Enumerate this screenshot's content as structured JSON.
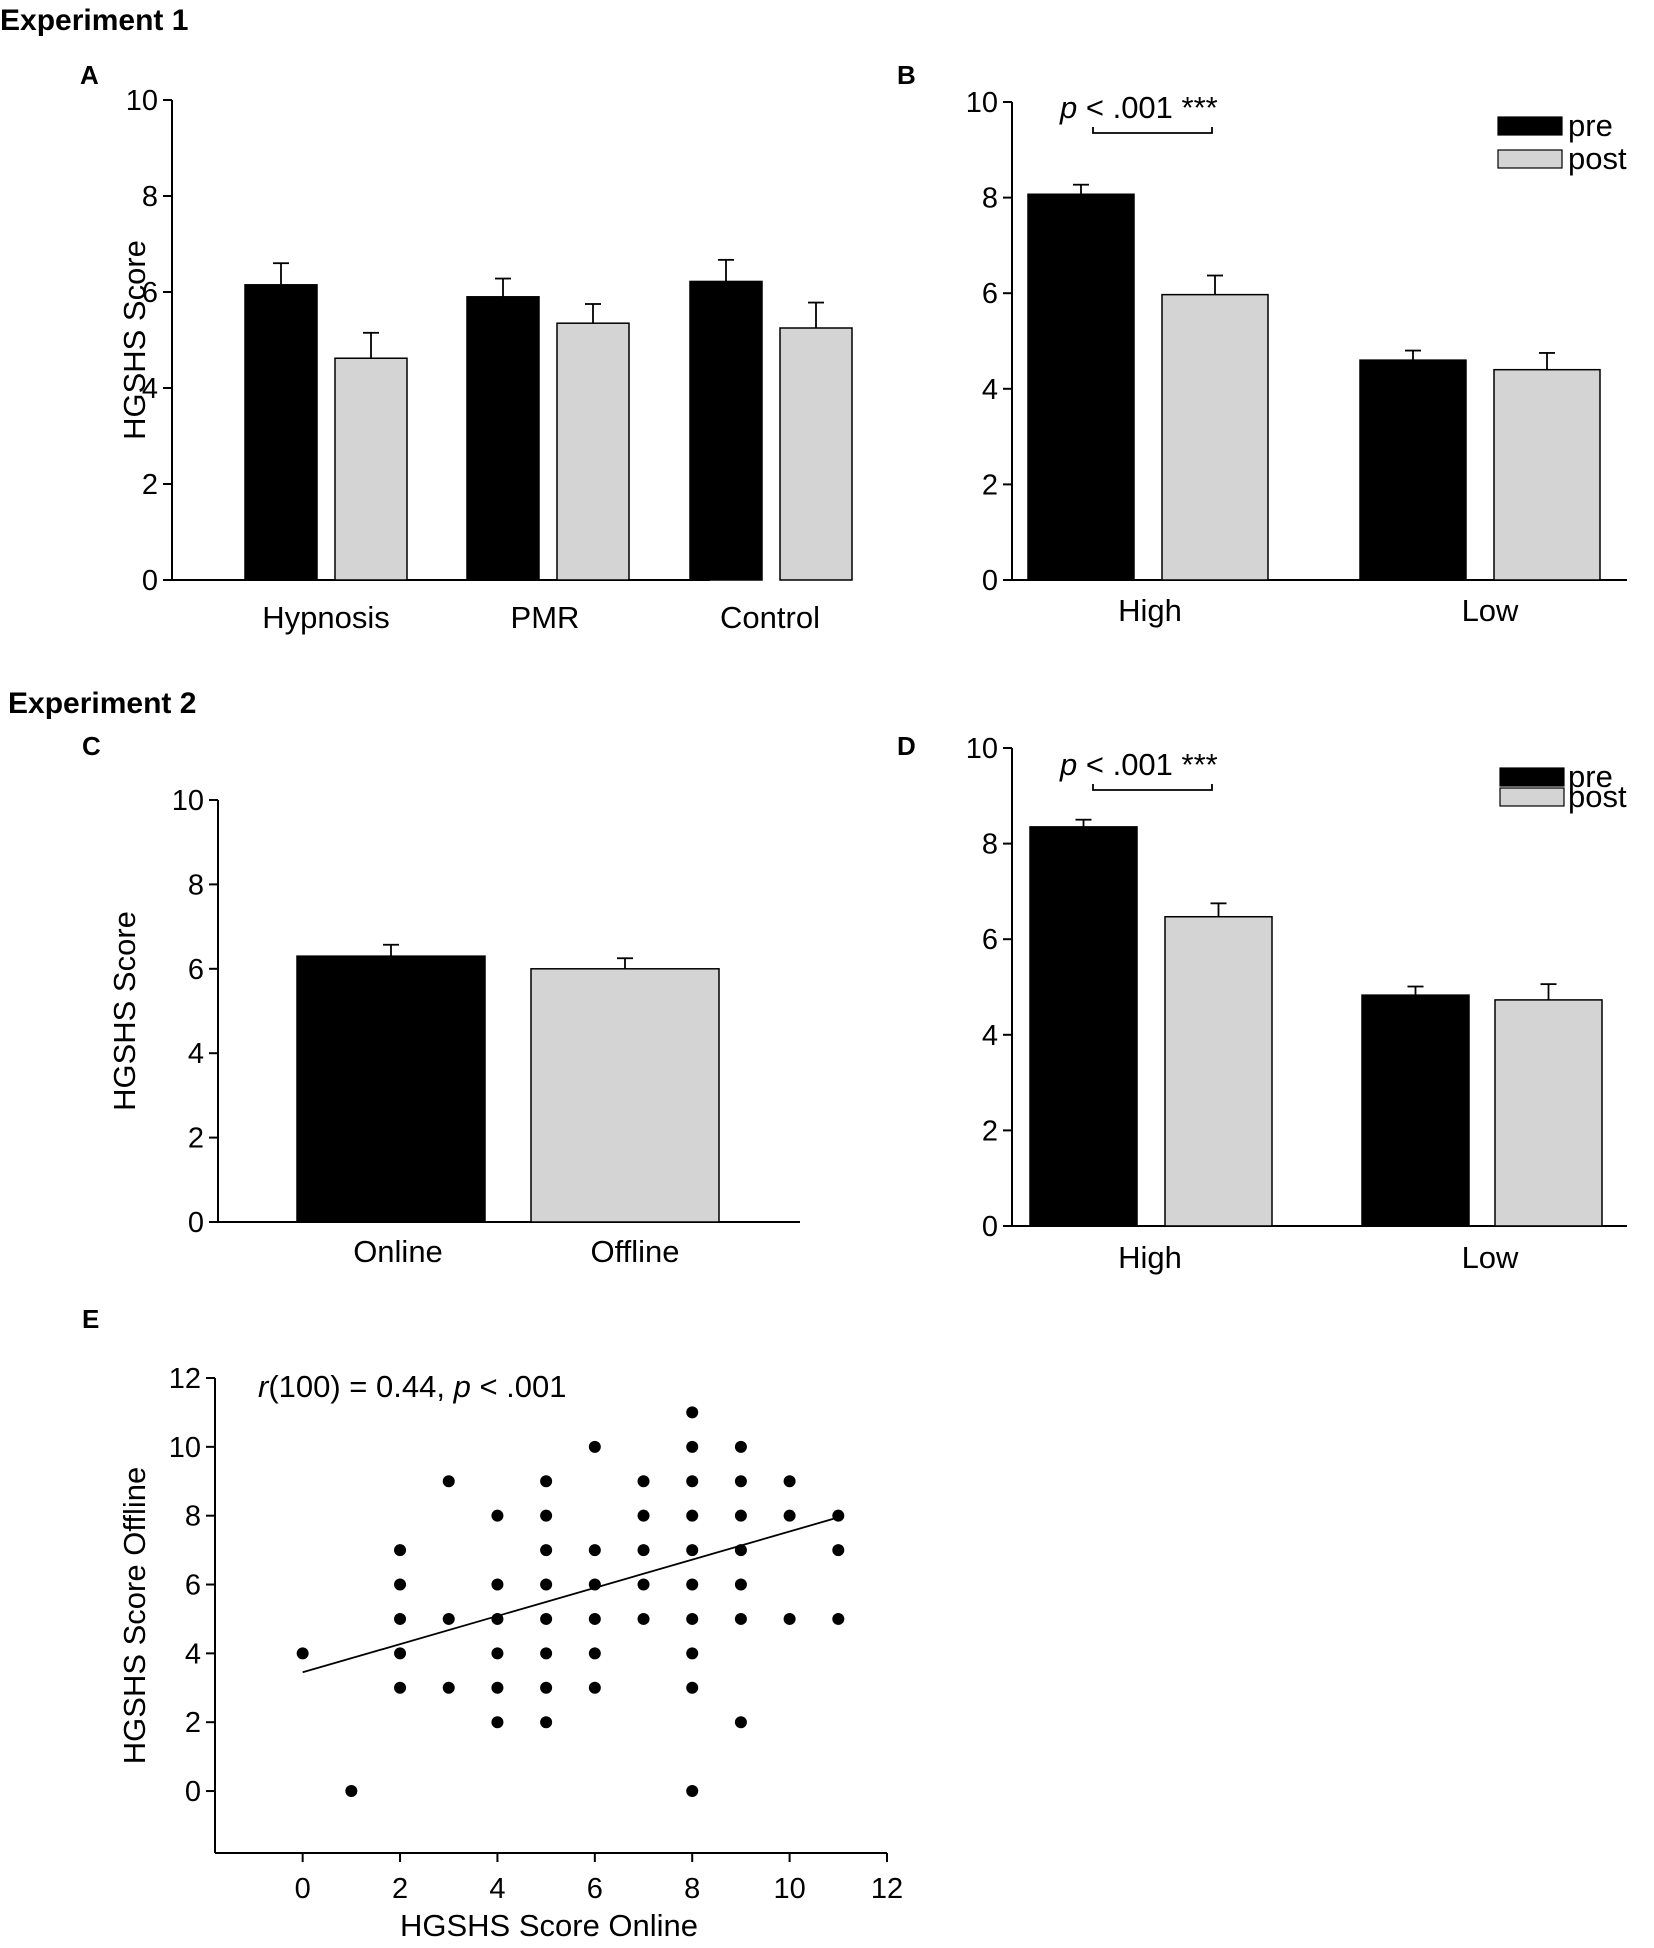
{
  "headings": {
    "experiment1": "Experiment 1",
    "experiment2": "Experiment 2"
  },
  "colors": {
    "pre": "#000000",
    "post": "#d4d4d4",
    "axis": "#000000"
  },
  "legend": {
    "pre": "pre",
    "post": "post"
  },
  "chart_data": [
    {
      "id": "A",
      "panel_label": "A",
      "type": "bar",
      "ylabel": "HGSHS Score",
      "ylim": [
        0,
        10
      ],
      "yticks": [
        0,
        2,
        4,
        6,
        8,
        10
      ],
      "categories": [
        "Hypnosis",
        "PMR",
        "Control"
      ],
      "series": [
        {
          "name": "pre",
          "values": [
            6.15,
            5.9,
            6.22
          ],
          "errors": [
            0.45,
            0.38,
            0.45
          ]
        },
        {
          "name": "post",
          "values": [
            4.62,
            5.35,
            5.25
          ],
          "errors": [
            0.53,
            0.4,
            0.53
          ]
        }
      ],
      "legend": false
    },
    {
      "id": "B",
      "panel_label": "B",
      "type": "bar",
      "ylabel": "",
      "ylim": [
        0,
        10
      ],
      "yticks": [
        0,
        2,
        4,
        6,
        8,
        10
      ],
      "categories": [
        "High",
        "Low"
      ],
      "series": [
        {
          "name": "pre",
          "values": [
            8.07,
            4.6
          ],
          "errors": [
            0.2,
            0.2
          ]
        },
        {
          "name": "post",
          "values": [
            5.97,
            4.4
          ],
          "errors": [
            0.4,
            0.35
          ]
        }
      ],
      "legend": true,
      "annotation": {
        "p_italic": "p",
        "text": " < .001 ***"
      }
    },
    {
      "id": "C",
      "panel_label": "C",
      "type": "bar",
      "ylabel": "HGSHS Score",
      "ylim": [
        0,
        10
      ],
      "yticks": [
        0,
        2,
        4,
        6,
        8,
        10
      ],
      "categories": [
        "Online",
        "Offline"
      ],
      "values": [
        6.3,
        6.0
      ],
      "errors": [
        0.27,
        0.25
      ],
      "bar_colors": [
        "#000000",
        "#d4d4d4"
      ],
      "legend": false
    },
    {
      "id": "D",
      "panel_label": "D",
      "type": "bar",
      "ylabel": "",
      "ylim": [
        0,
        10
      ],
      "yticks": [
        0,
        2,
        4,
        6,
        8,
        10
      ],
      "categories": [
        "High",
        "Low"
      ],
      "series": [
        {
          "name": "pre",
          "values": [
            8.35,
            4.83
          ],
          "errors": [
            0.15,
            0.18
          ]
        },
        {
          "name": "post",
          "values": [
            6.47,
            4.73
          ],
          "errors": [
            0.28,
            0.33
          ]
        }
      ],
      "legend": true,
      "annotation": {
        "p_italic": "p",
        "text": " < .001 ***"
      }
    },
    {
      "id": "E",
      "panel_label": "E",
      "type": "scatter",
      "xlabel": "HGSHS Score Online",
      "ylabel": "HGSHS Score Offline",
      "xlim": [
        -1.8,
        12
      ],
      "ylim": [
        -1.8,
        12
      ],
      "xticks": [
        0,
        2,
        4,
        6,
        8,
        10,
        12
      ],
      "yticks": [
        0,
        2,
        4,
        6,
        8,
        10,
        12
      ],
      "points": [
        [
          0,
          4
        ],
        [
          1,
          0
        ],
        [
          2,
          3
        ],
        [
          2,
          4
        ],
        [
          2,
          5
        ],
        [
          2,
          6
        ],
        [
          2,
          7
        ],
        [
          3,
          3
        ],
        [
          3,
          5
        ],
        [
          3,
          9
        ],
        [
          4,
          2
        ],
        [
          4,
          3
        ],
        [
          4,
          4
        ],
        [
          4,
          5
        ],
        [
          4,
          6
        ],
        [
          4,
          8
        ],
        [
          5,
          2
        ],
        [
          5,
          3
        ],
        [
          5,
          4
        ],
        [
          5,
          5
        ],
        [
          5,
          6
        ],
        [
          5,
          7
        ],
        [
          5,
          8
        ],
        [
          5,
          9
        ],
        [
          6,
          3
        ],
        [
          6,
          4
        ],
        [
          6,
          5
        ],
        [
          6,
          6
        ],
        [
          6,
          7
        ],
        [
          6,
          10
        ],
        [
          7,
          5
        ],
        [
          7,
          6
        ],
        [
          7,
          7
        ],
        [
          7,
          8
        ],
        [
          7,
          9
        ],
        [
          8,
          0
        ],
        [
          8,
          3
        ],
        [
          8,
          4
        ],
        [
          8,
          5
        ],
        [
          8,
          6
        ],
        [
          8,
          7
        ],
        [
          8,
          8
        ],
        [
          8,
          9
        ],
        [
          8,
          10
        ],
        [
          8,
          11
        ],
        [
          9,
          2
        ],
        [
          9,
          5
        ],
        [
          9,
          6
        ],
        [
          9,
          7
        ],
        [
          9,
          8
        ],
        [
          9,
          9
        ],
        [
          9,
          10
        ],
        [
          10,
          5
        ],
        [
          10,
          8
        ],
        [
          10,
          9
        ],
        [
          11,
          5
        ],
        [
          11,
          7
        ],
        [
          11,
          8
        ]
      ],
      "fit_line": {
        "x": [
          0,
          11
        ],
        "y": [
          3.45,
          7.95
        ]
      },
      "annotation": {
        "r_italic": "r",
        "r_text": "(100) = 0.44, ",
        "p_italic": "p",
        "p_text": " < .001"
      }
    }
  ]
}
